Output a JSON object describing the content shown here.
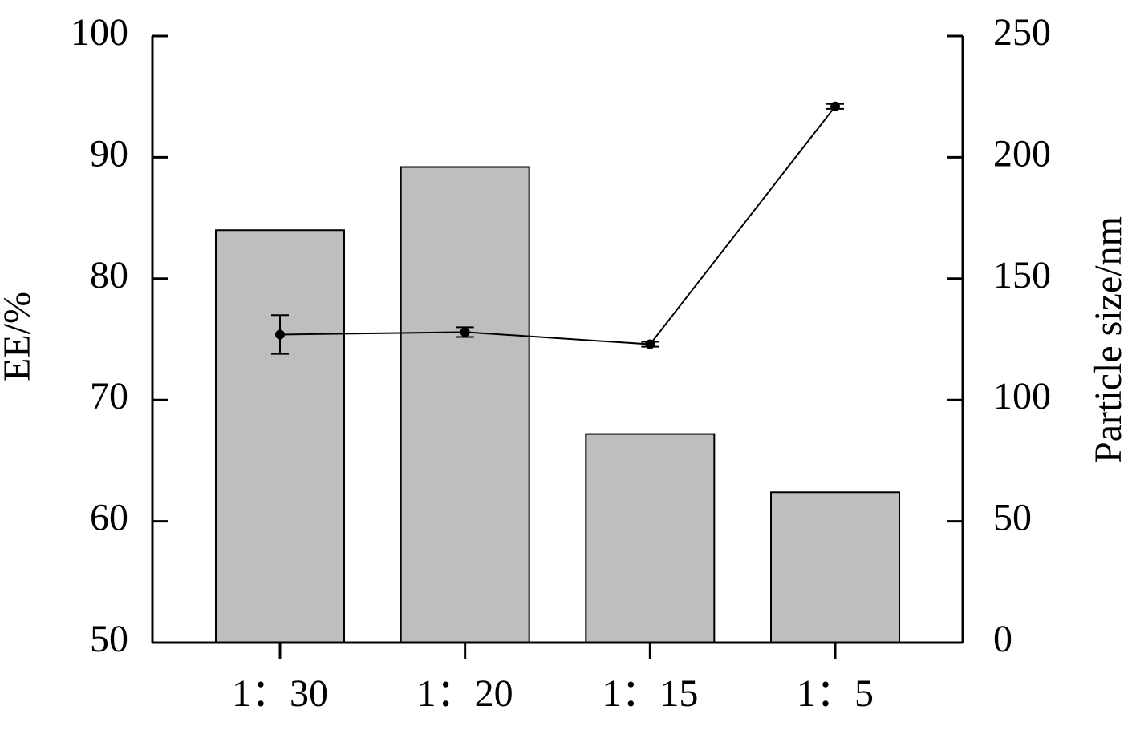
{
  "chart_data": {
    "type": "bar-line",
    "ylabel": "EE/%",
    "y2label": "Particle size/nm",
    "categories": [
      "1：30",
      "1：20",
      "1：15",
      "1：5"
    ],
    "series": [
      {
        "type": "bar",
        "color": "#bebebe",
        "values": [
          84.0,
          89.2,
          67.2,
          62.4
        ]
      },
      {
        "type": "line",
        "axis": "y2",
        "color": "#000000",
        "values": [
          127,
          128,
          123,
          221
        ],
        "errors": [
          8,
          2,
          1,
          1
        ]
      }
    ],
    "ylim": [
      50,
      100
    ],
    "yticks": [
      50,
      60,
      70,
      80,
      90,
      100
    ],
    "y2lim": [
      0,
      250
    ],
    "y2ticks": [
      0,
      50,
      100,
      150,
      200,
      250
    ]
  }
}
